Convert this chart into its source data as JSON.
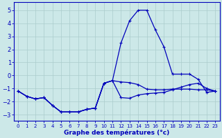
{
  "xlabel": "Graphe des températures (°c)",
  "background_color": "#cce8e8",
  "grid_color": "#aacccc",
  "line_color": "#0000bb",
  "hours": [
    0,
    1,
    2,
    3,
    4,
    5,
    6,
    7,
    8,
    9,
    10,
    11,
    12,
    13,
    14,
    15,
    16,
    17,
    18,
    19,
    20,
    21,
    22,
    23
  ],
  "line1": [
    -1.2,
    -1.6,
    -1.8,
    -1.7,
    -2.3,
    -2.8,
    -2.8,
    -2.8,
    -2.6,
    -2.5,
    -0.6,
    -0.4,
    2.5,
    4.2,
    5.0,
    5.0,
    3.5,
    2.2,
    0.1,
    0.1,
    0.1,
    -0.3,
    -1.3,
    -1.2
  ],
  "line2": [
    -1.2,
    -1.6,
    -1.8,
    -1.7,
    -2.3,
    -2.8,
    -2.8,
    -2.8,
    -2.6,
    -2.5,
    -0.6,
    -0.4,
    -0.5,
    -0.55,
    -0.7,
    -1.05,
    -1.1,
    -1.1,
    -1.05,
    -1.05,
    -1.05,
    -1.1,
    -1.1,
    -1.2
  ],
  "line3": [
    -1.2,
    -1.6,
    -1.8,
    -1.7,
    -2.3,
    -2.8,
    -2.8,
    -2.8,
    -2.6,
    -2.5,
    -0.6,
    -0.4,
    -1.7,
    -1.75,
    -1.5,
    -1.4,
    -1.35,
    -1.3,
    -1.1,
    -0.9,
    -0.7,
    -0.6,
    -1.0,
    -1.2
  ],
  "ylim": [
    -3.5,
    5.6
  ],
  "xlim": [
    -0.5,
    23.5
  ],
  "yticks": [
    -3,
    -2,
    -1,
    0,
    1,
    2,
    3,
    4,
    5
  ],
  "xticks": [
    0,
    1,
    2,
    3,
    4,
    5,
    6,
    7,
    8,
    9,
    10,
    11,
    12,
    13,
    14,
    15,
    16,
    17,
    18,
    19,
    20,
    21,
    22,
    23
  ],
  "tick_fontsize": 5.5,
  "xlabel_fontsize": 6.5
}
